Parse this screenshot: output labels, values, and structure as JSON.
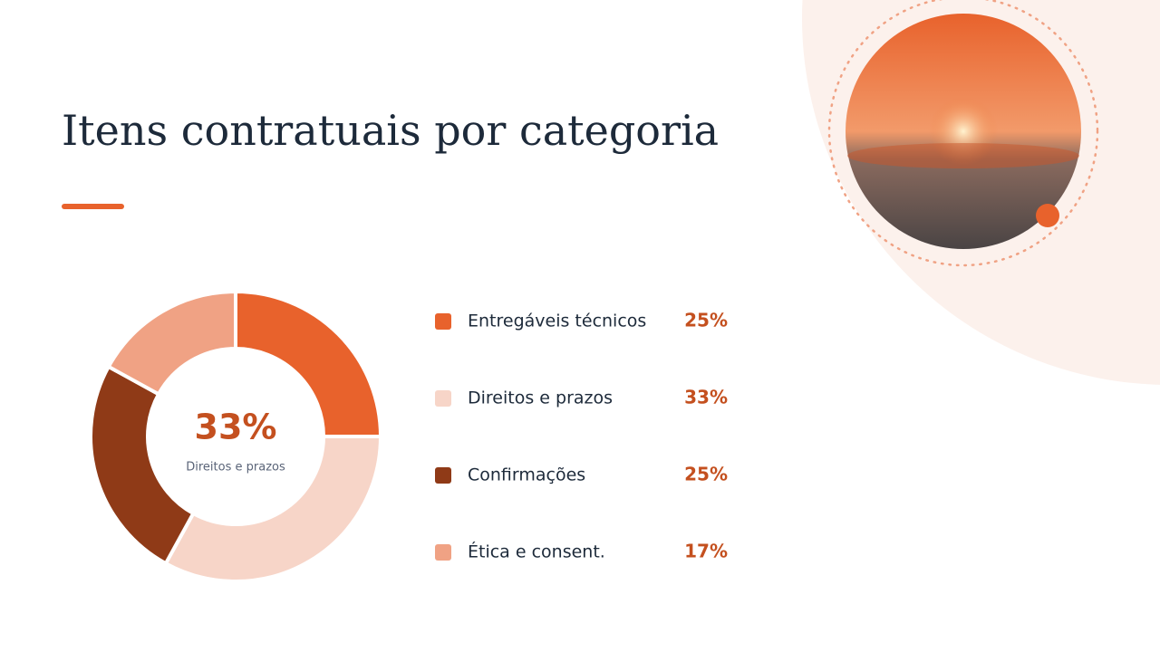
{
  "chart_data": {
    "type": "donut",
    "title": "Itens contratuais por categoria",
    "categories": [
      "Entregáveis técnicos",
      "Direitos e prazos",
      "Confirmações",
      "Ética e consent."
    ],
    "values": [
      25,
      33,
      25,
      17
    ],
    "value_labels": [
      "25%",
      "33%",
      "25%",
      "17%"
    ],
    "colors": [
      "#e8622c",
      "#f7d5c8",
      "#8f3a17",
      "#f0a284"
    ]
  }
}
